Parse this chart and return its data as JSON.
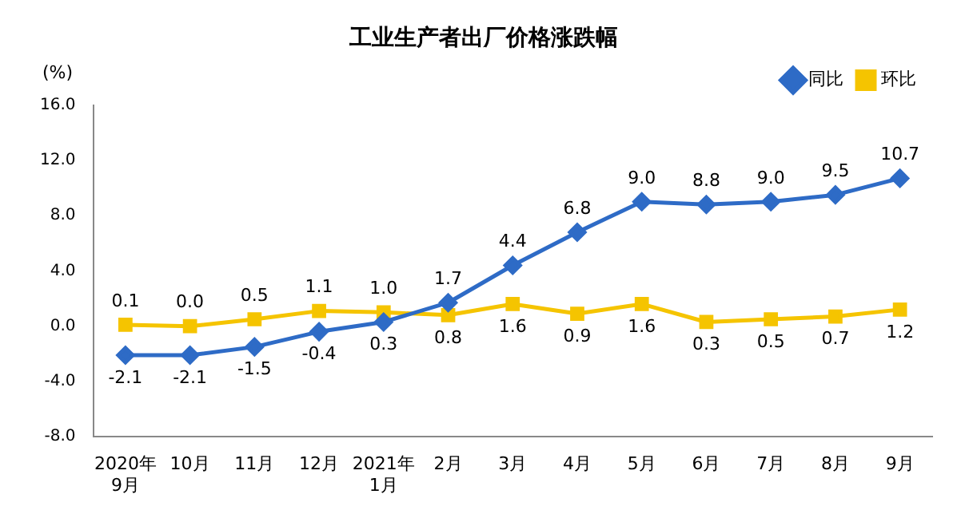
{
  "chart_data": {
    "type": "line",
    "title": "工业生产者出厂价格涨跌幅",
    "ylabel": "(%)",
    "categories": [
      "2020年\n9月",
      "10月",
      "11月",
      "12月",
      "2021年\n1月",
      "2月",
      "3月",
      "4月",
      "5月",
      "6月",
      "7月",
      "8月",
      "9月"
    ],
    "series": [
      {
        "name": "同比",
        "color": "#2e6bc6",
        "marker": "diamond",
        "values": [
          -2.1,
          -2.1,
          -1.5,
          -0.4,
          0.3,
          1.7,
          4.4,
          6.8,
          9.0,
          8.8,
          9.0,
          9.5,
          10.7
        ],
        "value_labels": [
          "-2.1",
          "-2.1",
          "-1.5",
          "-0.4",
          "0.3",
          "1.7",
          "4.4",
          "6.8",
          "9.0",
          "8.8",
          "9.0",
          "9.5",
          "10.7"
        ]
      },
      {
        "name": "环比",
        "color": "#f5c400",
        "marker": "square",
        "values": [
          0.1,
          0.0,
          0.5,
          1.1,
          1.0,
          0.8,
          1.6,
          0.9,
          1.6,
          0.3,
          0.5,
          0.7,
          1.2
        ],
        "value_labels": [
          "0.1",
          "0.0",
          "0.5",
          "1.1",
          "1.0",
          "0.8",
          "1.6",
          "0.9",
          "1.6",
          "0.3",
          "0.5",
          "0.7",
          "1.2"
        ]
      }
    ],
    "ylim": [
      -8,
      16
    ],
    "yticks": [
      {
        "value": -8,
        "label": "-8.0"
      },
      {
        "value": -4,
        "label": "-4.0"
      },
      {
        "value": 0,
        "label": "0.0"
      },
      {
        "value": 4,
        "label": "4.0"
      },
      {
        "value": 8,
        "label": "8.0"
      },
      {
        "value": 12,
        "label": "12.0"
      },
      {
        "value": 16,
        "label": "16.0"
      }
    ],
    "grid": false,
    "legend": "top right",
    "line_style": "solid"
  }
}
